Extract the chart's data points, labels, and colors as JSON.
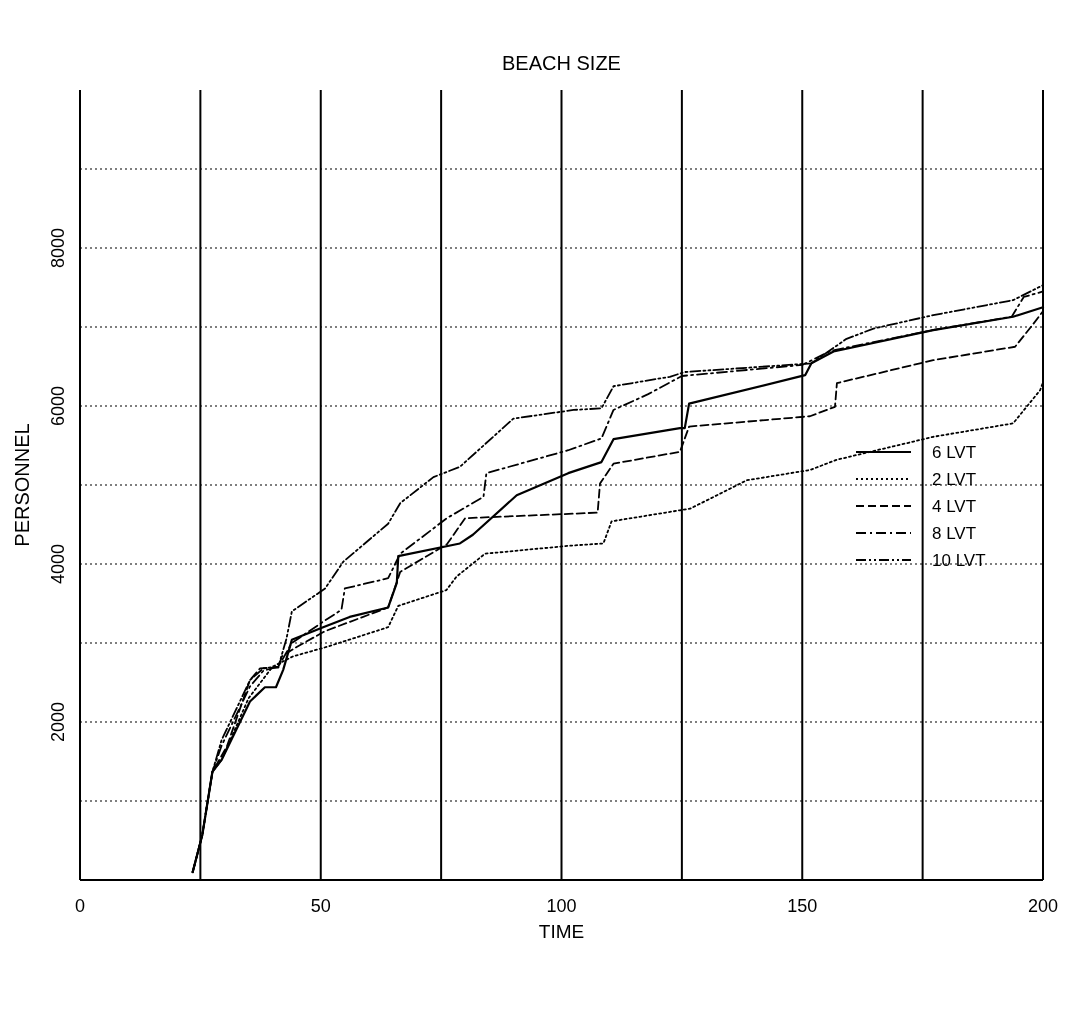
{
  "chart_data": {
    "type": "line",
    "title": "BEACH SIZE",
    "xlabel": "TIME",
    "ylabel": "PERSONNEL",
    "xlim": [
      0,
      200
    ],
    "xticks": [
      0,
      {
        "value": 25,
        "label": null
      },
      50,
      {
        "value": 75,
        "label": null
      },
      100,
      {
        "value": 125,
        "label": null
      },
      150,
      {
        "value": 175,
        "label": null
      },
      200
    ],
    "ylim": [
      0,
      10000
    ],
    "yticks": [
      {
        "value": 1000,
        "label": null
      },
      2000,
      {
        "value": 3000,
        "label": null
      },
      4000,
      {
        "value": 5000,
        "label": null
      },
      6000,
      {
        "value": 7000,
        "label": null
      },
      8000,
      {
        "value": 9000,
        "label": null
      }
    ],
    "grid": true,
    "legend": "right",
    "marker": "none",
    "series": [
      {
        "name": "6 LVT",
        "color": "#000000",
        "line_style": "solid",
        "x": [
          23.4,
          25.4,
          27.5,
          29.4,
          35.3,
          38.4,
          40.7,
          42.2,
          44,
          50.5,
          56,
          64,
          65.8,
          66.1,
          78.9,
          81.6,
          90.7,
          101.4,
          108.3,
          110.8,
          124.6,
          125.6,
          126.5,
          150.6,
          151.9,
          156.5,
          177.2,
          193.8,
          200
        ],
        "values": [
          100,
          570,
          1370,
          1520,
          2260,
          2440,
          2440,
          2660,
          3040,
          3200,
          3330,
          3450,
          3760,
          4100,
          4260,
          4370,
          4870,
          5150,
          5290,
          5580,
          5720,
          5720,
          6030,
          6390,
          6540,
          6690,
          6960,
          7130,
          7250
        ]
      },
      {
        "name": "2 LVT",
        "color": "#000000",
        "line_style": "dotted",
        "x": [
          23.4,
          25.4,
          27.5,
          29.4,
          35,
          40,
          44.2,
          51.2,
          64,
          66.1,
          76.1,
          78.2,
          84.1,
          101.4,
          108.7,
          110.4,
          124.6,
          126.7,
          138.5,
          151.6,
          157.2,
          173.1,
          177.2,
          193.8,
          196.6,
          199.4,
          200
        ],
        "values": [
          100,
          570,
          1370,
          1520,
          2300,
          2700,
          2830,
          2950,
          3200,
          3470,
          3670,
          3840,
          4130,
          4230,
          4260,
          4540,
          4680,
          4700,
          5060,
          5190,
          5320,
          5550,
          5610,
          5780,
          5990,
          6200,
          6300
        ]
      },
      {
        "name": "4 LVT",
        "color": "#000000",
        "line_style": "dashed",
        "x": [
          23.4,
          25.4,
          27.5,
          30.5,
          35.3,
          37.4,
          41.2,
          41.9,
          45,
          50.9,
          64,
          66.5,
          76.2,
          80,
          107.5,
          108,
          110.8,
          124.6,
          126.5,
          151.6,
          156.8,
          157.2,
          177.2,
          194.2,
          198,
          200
        ],
        "values": [
          100,
          570,
          1370,
          1690,
          2530,
          2680,
          2690,
          2830,
          2950,
          3150,
          3450,
          3900,
          4250,
          4580,
          4650,
          5020,
          5270,
          5420,
          5740,
          5870,
          5990,
          6290,
          6580,
          6750,
          7040,
          7200
        ]
      },
      {
        "name": "8 LVT",
        "color": "#000000",
        "line_style": "dashed",
        "x": [
          23.4,
          25.4,
          27.5,
          29.4,
          35.3,
          38.1,
          41.2,
          44,
          50.5,
          54.3,
          55,
          64,
          66.5,
          76.2,
          83.8,
          84.4,
          101.4,
          108.3,
          110.8,
          118,
          125,
          150,
          156,
          177,
          193.5,
          196,
          200
        ],
        "values": [
          100,
          570,
          1370,
          1700,
          2450,
          2650,
          2700,
          3000,
          3270,
          3420,
          3690,
          3820,
          4130,
          4580,
          4850,
          5150,
          5440,
          5590,
          5950,
          6150,
          6380,
          6520,
          6700,
          6960,
          7130,
          7380,
          7450
        ]
      },
      {
        "name": "10 LVT",
        "color": "#000000",
        "line_style": "dashed",
        "x": [
          23.4,
          25.4,
          27.5,
          29.4,
          35.3,
          38.1,
          41.2,
          42.9,
          44,
          50.9,
          54.7,
          64,
          66.5,
          73.4,
          78.9,
          90,
          102.5,
          108.3,
          110.8,
          122.5,
          125.6,
          151.9,
          159.2,
          164.8,
          177.2,
          193.8,
          200
        ],
        "values": [
          100,
          570,
          1370,
          1770,
          2530,
          2680,
          2700,
          3060,
          3400,
          3690,
          4030,
          4510,
          4770,
          5100,
          5230,
          5840,
          5950,
          5970,
          6250,
          6370,
          6430,
          6540,
          6850,
          6980,
          7150,
          7340,
          7530
        ]
      }
    ]
  }
}
